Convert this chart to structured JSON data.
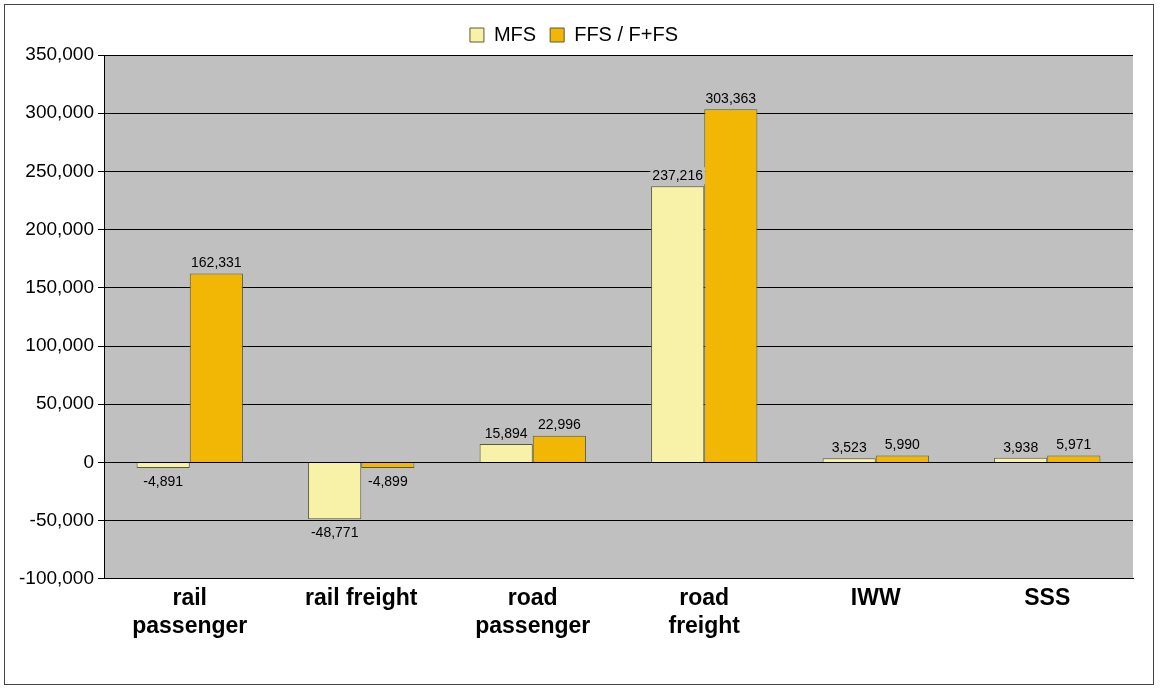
{
  "chart_data": {
    "type": "bar",
    "categories": [
      "rail\npassenger",
      "rail freight",
      "road\npassenger",
      "road\nfreight",
      "IWW",
      "SSS"
    ],
    "series": [
      {
        "name": "MFS",
        "color": "#f8f2a8",
        "values": [
          -4891,
          -48771,
          15894,
          237216,
          3523,
          3938
        ],
        "value_labels": [
          "-4,891",
          "-48,771",
          "15,894",
          "237,216",
          "3,523",
          "3,938"
        ]
      },
      {
        "name": "FFS / F+FS",
        "color": "#f2b705",
        "values": [
          162331,
          -4899,
          22996,
          303363,
          5990,
          5971
        ],
        "value_labels": [
          "162,331",
          "-4,899",
          "22,996",
          "303,363",
          "5,990",
          "5,971"
        ]
      }
    ],
    "ylim": [
      -100000,
      350000
    ],
    "yticks": [
      {
        "value": -100000,
        "label": "-100,000"
      },
      {
        "value": -50000,
        "label": "-50,000"
      },
      0,
      {
        "value": 50000,
        "label": "50,000"
      },
      {
        "value": 100000,
        "label": "100,000"
      },
      {
        "value": 150000,
        "label": "150,000"
      },
      {
        "value": 200000,
        "label": "200,000"
      },
      {
        "value": 250000,
        "label": "250,000"
      },
      {
        "value": 300000,
        "label": "300,000"
      },
      {
        "value": 350000,
        "label": "350,000"
      }
    ],
    "grid": "y",
    "legend": "top"
  }
}
